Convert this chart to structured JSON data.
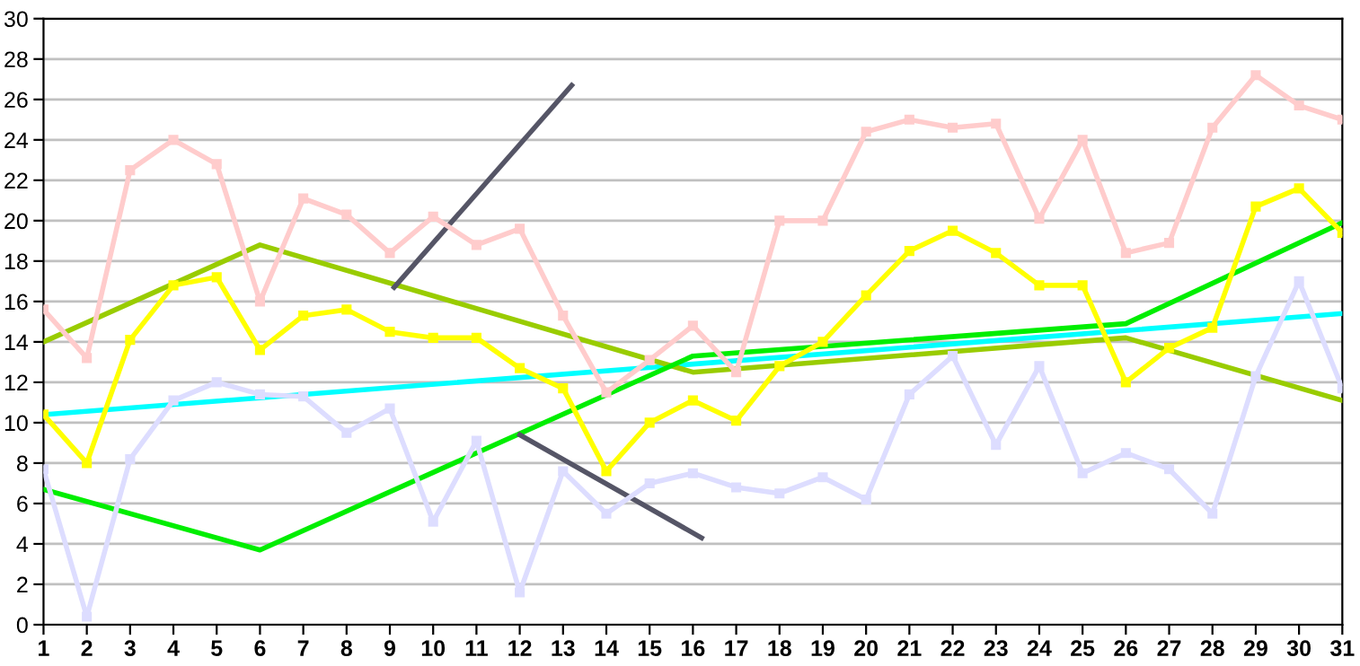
{
  "chart_data": {
    "type": "line",
    "xlim": [
      1,
      31
    ],
    "xticks": [
      1,
      2,
      3,
      4,
      5,
      6,
      7,
      8,
      9,
      10,
      11,
      12,
      13,
      14,
      15,
      16,
      17,
      18,
      19,
      20,
      21,
      22,
      23,
      24,
      25,
      26,
      27,
      28,
      29,
      30,
      31
    ],
    "ylim": [
      0,
      30
    ],
    "yticks": [
      0,
      2,
      4,
      6,
      8,
      10,
      12,
      14,
      16,
      18,
      20,
      22,
      24,
      26,
      28,
      30
    ],
    "grid": "y",
    "x": [
      1,
      2,
      3,
      4,
      5,
      6,
      7,
      8,
      9,
      10,
      11,
      12,
      13,
      14,
      15,
      16,
      17,
      18,
      19,
      20,
      21,
      22,
      23,
      24,
      25,
      26,
      27,
      28,
      29,
      30,
      31
    ],
    "series": [
      {
        "color": "#ffcccc",
        "marker": "square",
        "values": [
          15.6,
          13.2,
          22.5,
          24.0,
          22.8,
          16.0,
          21.1,
          20.3,
          18.4,
          20.2,
          18.8,
          19.6,
          15.3,
          11.5,
          13.1,
          14.8,
          12.5,
          20.0,
          20.0,
          24.4,
          25.0,
          24.6,
          24.8,
          20.1,
          24.0,
          18.4,
          18.9,
          24.6,
          27.2,
          25.7,
          25.0
        ]
      },
      {
        "color": "#ffff00",
        "marker": "square",
        "values": [
          10.4,
          8.0,
          14.1,
          16.8,
          17.2,
          13.6,
          15.3,
          15.6,
          14.5,
          14.2,
          14.2,
          12.7,
          11.7,
          7.6,
          10.0,
          11.1,
          10.1,
          12.8,
          14.0,
          16.3,
          18.5,
          19.5,
          18.4,
          16.8,
          16.8,
          12.0,
          13.7,
          14.7,
          20.7,
          21.6,
          19.4
        ]
      },
      {
        "color": "#ddddff",
        "marker": "square",
        "values": [
          7.7,
          0.4,
          8.2,
          11.1,
          12.0,
          11.4,
          11.3,
          9.5,
          10.7,
          5.1,
          9.1,
          1.6,
          7.6,
          5.5,
          7.0,
          7.5,
          6.8,
          6.5,
          7.3,
          6.2,
          11.4,
          13.3,
          8.9,
          12.8,
          7.5,
          8.5,
          7.7,
          5.5,
          12.3,
          17.0,
          11.7
        ]
      },
      {
        "color": "#00ffff",
        "marker": "none",
        "x": [
          1,
          31
        ],
        "values": [
          10.4,
          15.4
        ]
      },
      {
        "color": "#99cc00",
        "marker": "none",
        "x": [
          1,
          6,
          16,
          26,
          31
        ],
        "values": [
          14.0,
          18.8,
          12.5,
          14.2,
          11.1
        ]
      },
      {
        "color": "#00ee00",
        "marker": "none",
        "x": [
          1,
          6,
          16,
          26,
          31
        ],
        "values": [
          6.7,
          3.7,
          13.3,
          14.9,
          19.9
        ]
      },
      {
        "color": "#555566",
        "marker": "none",
        "x": [
          9.1,
          13.2
        ],
        "values": [
          16.7,
          26.7
        ]
      },
      {
        "color": "#555566",
        "marker": "none",
        "x": [
          12.0,
          16.2
        ],
        "values": [
          9.4,
          4.3
        ]
      }
    ]
  }
}
